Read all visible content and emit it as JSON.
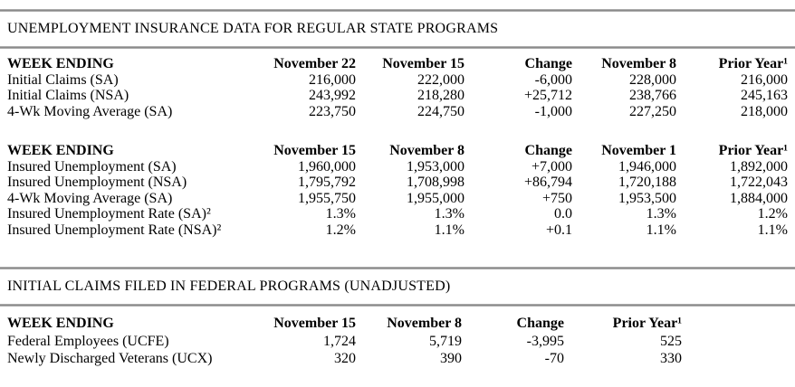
{
  "document": {
    "sections": [
      {
        "title": "UNEMPLOYMENT INSURANCE DATA FOR REGULAR STATE PROGRAMS"
      },
      {
        "title": "INITIAL CLAIMS FILED IN FEDERAL PROGRAMS (UNADJUSTED)"
      }
    ]
  },
  "colors": {
    "rule_gray": "#8a8a8a",
    "text": "#000000",
    "background": "#ffffff"
  },
  "tables": [
    {
      "name": "regular-state-programs-initial-claims",
      "headers": [
        "WEEK ENDING",
        "November 22",
        "November 15",
        "Change",
        "November 8",
        "Prior Year¹"
      ],
      "rows": [
        [
          "Initial Claims (SA)",
          "216,000",
          "222,000",
          "-6,000",
          "228,000",
          "216,000"
        ],
        [
          "Initial Claims (NSA)",
          "243,992",
          "218,280",
          "+25,712",
          "238,766",
          "245,163"
        ],
        [
          "4-Wk Moving Average (SA)",
          "223,750",
          "224,750",
          "-1,000",
          "227,250",
          "218,000"
        ]
      ]
    },
    {
      "name": "regular-state-programs-insured-unemployment",
      "headers": [
        "WEEK ENDING",
        "November 15",
        "November 8",
        "Change",
        "November 1",
        "Prior Year¹"
      ],
      "rows": [
        [
          "Insured Unemployment (SA)",
          "1,960,000",
          "1,953,000",
          "+7,000",
          "1,946,000",
          "1,892,000"
        ],
        [
          "Insured Unemployment (NSA)",
          "1,795,792",
          "1,708,998",
          "+86,794",
          "1,720,188",
          "1,722,043"
        ],
        [
          "4-Wk Moving Average (SA)",
          "1,955,750",
          "1,955,000",
          "+750",
          "1,953,500",
          "1,884,000"
        ],
        [
          "Insured Unemployment Rate (SA)²",
          "1.3%",
          "1.3%",
          "0.0",
          "1.3%",
          "1.2%"
        ],
        [
          "Insured Unemployment Rate (NSA)²",
          "1.2%",
          "1.1%",
          "+0.1",
          "1.1%",
          "1.1%"
        ]
      ]
    },
    {
      "name": "federal-programs-initial-claims",
      "headers": [
        "WEEK ENDING",
        "November 15",
        "November 8",
        "Change",
        "Prior Year¹"
      ],
      "rows": [
        [
          "Federal Employees (UCFE)",
          "1,724",
          "5,719",
          "-3,995",
          "525"
        ],
        [
          "Newly Discharged Veterans (UCX)",
          "320",
          "390",
          "-70",
          "330"
        ]
      ]
    }
  ]
}
